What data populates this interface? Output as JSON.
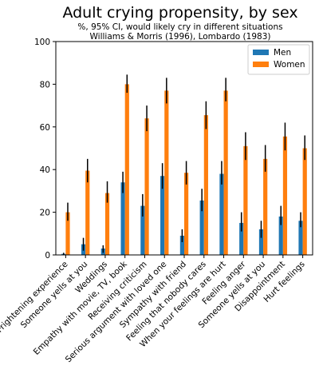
{
  "chart_data": {
    "type": "bar",
    "title": "Adult crying propensity, by sex",
    "subtitle_lines": [
      "%, 95% CI, would likely cry in different situations",
      "Williams & Morris (1996), Lombardo (1983)"
    ],
    "xlabel": "",
    "ylabel": "",
    "ylim": [
      0,
      100
    ],
    "yticks": [
      0,
      20,
      40,
      60,
      80,
      100
    ],
    "grid": false,
    "legend": "top-right",
    "categories": [
      "Frightening experience",
      "Someone yells at you",
      "Weddings",
      "Empathy with movie, TV, book",
      "Receiving criticism",
      "Serious argument with loved one",
      "Sympathy with friend",
      "Feeling that nobody cares",
      "When your feelings are hurt",
      "Feeling anger",
      "Someone yells at you",
      "Disappointment",
      "Hurt feelings"
    ],
    "series": [
      {
        "name": "Men",
        "color": "#1f77b4",
        "values": [
          0.5,
          5,
          3,
          34,
          23,
          37,
          9,
          25.5,
          38,
          15,
          12,
          18,
          16
        ],
        "err_low": [
          0,
          2,
          1,
          29,
          18,
          31,
          6,
          20.5,
          33,
          11,
          8,
          14,
          13
        ],
        "err_high": [
          1,
          8,
          4.5,
          39,
          28.5,
          43,
          12,
          31,
          44,
          20,
          16,
          23,
          20
        ]
      },
      {
        "name": "Women",
        "color": "#ff7f0e",
        "values": [
          20,
          39.5,
          29,
          80,
          64,
          77,
          38.5,
          65.5,
          77,
          51,
          45,
          55.5,
          50
        ],
        "err_low": [
          16,
          34,
          24.5,
          76,
          58,
          71,
          33,
          59,
          72,
          44.5,
          39,
          49,
          44.5
        ],
        "err_high": [
          24.5,
          45,
          34.5,
          84.5,
          70,
          83,
          44,
          72,
          83,
          57.5,
          51.5,
          62,
          56
        ]
      }
    ]
  }
}
